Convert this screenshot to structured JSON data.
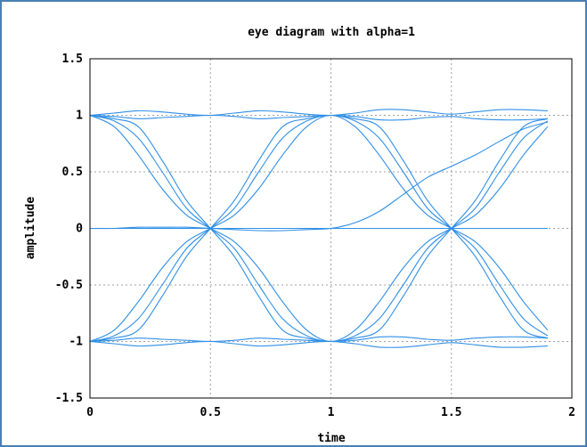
{
  "chart_data": {
    "type": "line",
    "title": "eye diagram with alpha=1",
    "xlabel": "time",
    "ylabel": "amplitude",
    "xlim": [
      0,
      2
    ],
    "ylim": [
      -1.5,
      1.5
    ],
    "xticks": [
      "0",
      "0.5",
      "1",
      "1.5",
      "2"
    ],
    "yticks": [
      "1.5",
      "1",
      "0.5",
      "0",
      "-0.5",
      "-1",
      "-1.5"
    ],
    "grid": true,
    "line_color": "#2f8fe6",
    "x_end": 1.9,
    "series": [
      {
        "x": [
          0,
          0.1,
          0.2,
          0.3,
          0.4,
          0.5,
          0.6,
          0.7,
          0.8,
          0.9,
          1.0,
          1.1,
          1.2,
          1.3,
          1.4,
          1.5,
          1.6,
          1.7,
          1.8,
          1.9
        ],
        "y": [
          1,
          1.02,
          1.04,
          1.03,
          1.01,
          1,
          1.02,
          1.04,
          1.03,
          1.01,
          1,
          1.02,
          1.05,
          1.05,
          1.03,
          1.01,
          1.03,
          1.05,
          1.05,
          1.04
        ]
      },
      {
        "x": [
          0,
          0.1,
          0.2,
          0.3,
          0.4,
          0.5,
          0.6,
          0.7,
          0.8,
          0.9,
          1.0,
          1.1,
          1.2,
          1.3,
          1.4,
          1.5,
          1.6,
          1.7,
          1.8,
          1.9
        ],
        "y": [
          1,
          0.99,
          0.97,
          0.98,
          0.99,
          1,
          0.99,
          0.97,
          0.98,
          0.99,
          1,
          0.99,
          0.96,
          0.96,
          0.98,
          0.99,
          0.97,
          0.96,
          0.96,
          0.97
        ]
      },
      {
        "x": [
          0,
          0.1,
          0.2,
          0.3,
          0.4,
          0.5,
          0.6,
          0.7,
          0.8,
          0.9,
          1.0,
          1.1,
          1.2,
          1.3,
          1.4,
          1.5,
          1.6,
          1.7,
          1.8,
          1.9
        ],
        "y": [
          -1,
          -1.02,
          -1.04,
          -1.03,
          -1.01,
          -1,
          -1.02,
          -1.04,
          -1.03,
          -1.01,
          -1,
          -1.02,
          -1.05,
          -1.05,
          -1.03,
          -1.01,
          -1.03,
          -1.05,
          -1.05,
          -1.04
        ]
      },
      {
        "x": [
          0,
          0.1,
          0.2,
          0.3,
          0.4,
          0.5,
          0.6,
          0.7,
          0.8,
          0.9,
          1.0,
          1.1,
          1.2,
          1.3,
          1.4,
          1.5,
          1.6,
          1.7,
          1.8,
          1.9
        ],
        "y": [
          -1,
          -0.99,
          -0.97,
          -0.98,
          -0.99,
          -1,
          -0.99,
          -0.97,
          -0.98,
          -0.99,
          -1,
          -0.99,
          -0.96,
          -0.96,
          -0.98,
          -0.99,
          -0.97,
          -0.96,
          -0.96,
          -0.97
        ]
      },
      {
        "x": [
          0,
          0.1,
          0.2,
          0.3,
          0.4,
          0.5,
          0.6,
          0.7,
          0.8,
          0.9,
          1.0,
          1.1,
          1.2,
          1.3,
          1.4,
          1.5,
          1.6,
          1.7,
          1.8,
          1.9
        ],
        "y": [
          1,
          0.9,
          0.65,
          0.35,
          0.12,
          0,
          -0.12,
          -0.35,
          -0.65,
          -0.9,
          -1,
          -0.9,
          -0.65,
          -0.35,
          -0.12,
          0,
          0.12,
          0.35,
          0.65,
          0.9
        ]
      },
      {
        "x": [
          0,
          0.1,
          0.2,
          0.3,
          0.4,
          0.5,
          0.6,
          0.7,
          0.8,
          0.9,
          1.0,
          1.1,
          1.2,
          1.3,
          1.4,
          1.5,
          1.6,
          1.7,
          1.8,
          1.9
        ],
        "y": [
          1,
          0.95,
          0.8,
          0.5,
          0.18,
          0,
          -0.18,
          -0.5,
          -0.8,
          -0.95,
          -1,
          -0.95,
          -0.8,
          -0.5,
          -0.18,
          0,
          0.18,
          0.5,
          0.8,
          0.95
        ]
      },
      {
        "x": [
          0,
          0.1,
          0.2,
          0.3,
          0.4,
          0.5,
          0.6,
          0.7,
          0.8,
          0.9,
          1.0,
          1.1,
          1.2,
          1.3,
          1.4,
          1.5,
          1.6,
          1.7,
          1.8,
          1.9
        ],
        "y": [
          -1,
          -0.9,
          -0.65,
          -0.35,
          -0.12,
          0,
          0.12,
          0.35,
          0.65,
          0.9,
          1,
          0.9,
          0.65,
          0.35,
          0.12,
          0,
          -0.12,
          -0.35,
          -0.65,
          -0.9
        ]
      },
      {
        "x": [
          0,
          0.1,
          0.2,
          0.3,
          0.4,
          0.5,
          0.6,
          0.7,
          0.8,
          0.9,
          1.0,
          1.1,
          1.2,
          1.3,
          1.4,
          1.5,
          1.6,
          1.7,
          1.8,
          1.9
        ],
        "y": [
          -1,
          -0.95,
          -0.8,
          -0.5,
          -0.18,
          0,
          0.18,
          0.5,
          0.8,
          0.95,
          1,
          0.95,
          0.8,
          0.5,
          0.18,
          0,
          -0.18,
          -0.5,
          -0.8,
          -0.95
        ]
      },
      {
        "x": [
          0,
          0.1,
          0.2,
          0.3,
          0.4,
          0.5,
          0.6,
          0.7,
          0.8,
          0.9,
          1.0,
          1.1,
          1.2,
          1.3,
          1.4,
          1.5,
          1.6,
          1.7,
          1.8,
          1.9
        ],
        "y": [
          1,
          0.97,
          0.9,
          0.6,
          0.25,
          0,
          -0.25,
          -0.6,
          -0.9,
          -0.97,
          -1,
          -0.97,
          -0.9,
          -0.6,
          -0.25,
          0,
          0.25,
          0.6,
          0.9,
          0.97
        ]
      },
      {
        "x": [
          0,
          0.1,
          0.2,
          0.3,
          0.4,
          0.5,
          0.6,
          0.7,
          0.8,
          0.9,
          1.0,
          1.1,
          1.2,
          1.3,
          1.4,
          1.5,
          1.6,
          1.7,
          1.8,
          1.9
        ],
        "y": [
          -1,
          -0.97,
          -0.9,
          -0.6,
          -0.25,
          0,
          0.25,
          0.6,
          0.9,
          0.97,
          1,
          0.97,
          0.9,
          0.6,
          0.25,
          0,
          -0.25,
          -0.6,
          -0.9,
          -0.97
        ]
      },
      {
        "x": [
          0,
          0.1,
          0.2,
          0.3,
          0.4,
          0.5,
          0.6,
          0.7,
          0.8,
          0.9,
          1.0,
          1.1,
          1.2,
          1.3,
          1.4,
          1.5,
          1.6,
          1.7,
          1.8,
          1.9
        ],
        "y": [
          0,
          0,
          0.01,
          0.01,
          0.01,
          0,
          -0.01,
          -0.02,
          -0.02,
          -0.01,
          0,
          0.05,
          0.15,
          0.3,
          0.45,
          0.55,
          0.65,
          0.77,
          0.88,
          0.94
        ]
      },
      {
        "x": [
          0,
          0.5,
          1.0,
          1.5,
          1.9
        ],
        "y": [
          0,
          0,
          0,
          0,
          0
        ]
      }
    ]
  }
}
